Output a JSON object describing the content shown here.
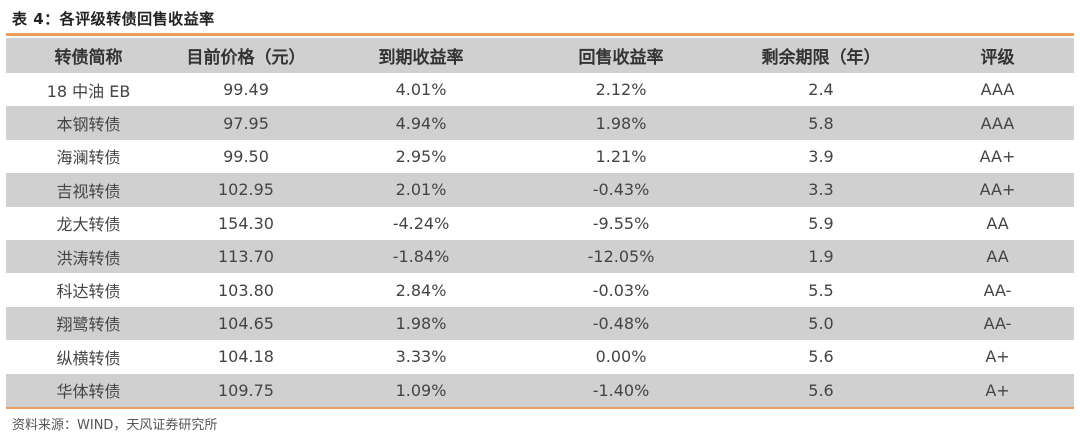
{
  "title": "表 4：各评级转债回售收益率",
  "colors": {
    "accent_rule": "#e8a060",
    "band_fill": "#d0d0d0"
  },
  "table": {
    "headers": [
      "转债简称",
      "目前价格（元）",
      "到期收益率",
      "回售收益率",
      "剩余期限（年）",
      "评级"
    ],
    "rows": [
      [
        "18 中油 EB",
        "99.49",
        "4.01%",
        "2.12%",
        "2.4",
        "AAA"
      ],
      [
        "本钢转债",
        "97.95",
        "4.94%",
        "1.98%",
        "5.8",
        "AAA"
      ],
      [
        "海澜转债",
        "99.50",
        "2.95%",
        "1.21%",
        "3.9",
        "AA+"
      ],
      [
        "吉视转债",
        "102.95",
        "2.01%",
        "-0.43%",
        "3.3",
        "AA+"
      ],
      [
        "龙大转债",
        "154.30",
        "-4.24%",
        "-9.55%",
        "5.9",
        "AA"
      ],
      [
        "洪涛转债",
        "113.70",
        "-1.84%",
        "-12.05%",
        "1.9",
        "AA"
      ],
      [
        "科达转债",
        "103.80",
        "2.84%",
        "-0.03%",
        "5.5",
        "AA-"
      ],
      [
        "翔鹭转债",
        "104.65",
        "1.98%",
        "-0.48%",
        "5.0",
        "AA-"
      ],
      [
        "纵横转债",
        "104.18",
        "3.33%",
        "0.00%",
        "5.6",
        "A+"
      ],
      [
        "华体转债",
        "109.75",
        "1.09%",
        "-1.40%",
        "5.6",
        "A+"
      ]
    ]
  },
  "source": "资料来源：WIND，天风证券研究所"
}
